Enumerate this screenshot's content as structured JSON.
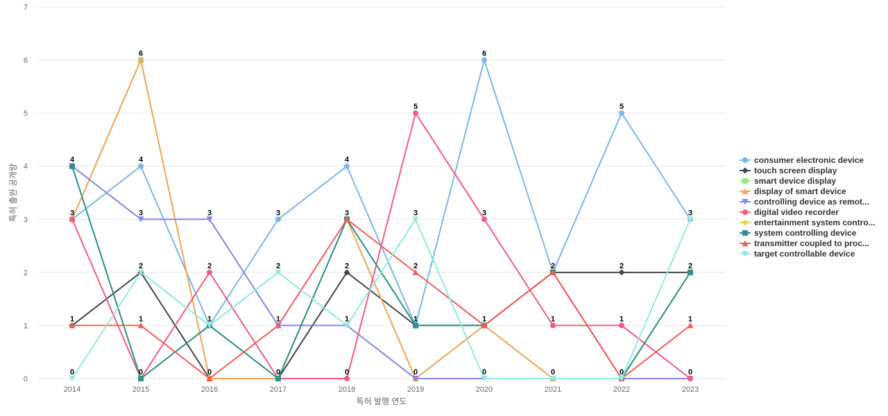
{
  "chart_data": {
    "type": "line",
    "title": "",
    "xlabel": "특허 발행 연도",
    "ylabel": "특허 출원 공개량",
    "x": [
      "2014",
      "2015",
      "2016",
      "2017",
      "2018",
      "2019",
      "2020",
      "2021",
      "2022",
      "2023"
    ],
    "ylim": [
      0,
      7
    ],
    "yticks": [
      0,
      1,
      2,
      3,
      4,
      5,
      6,
      7
    ],
    "grid": true,
    "legend_position": "right",
    "data_labels": true,
    "series": [
      {
        "name": "consumer electronic device",
        "color": "#7cb5ec",
        "marker": "circle",
        "values": [
          3,
          4,
          1,
          3,
          4,
          1,
          6,
          2,
          5,
          3
        ]
      },
      {
        "name": "touch screen display",
        "color": "#434348",
        "marker": "diamond",
        "values": [
          1,
          2,
          0,
          0,
          2,
          1,
          1,
          2,
          2,
          2
        ]
      },
      {
        "name": "smart device display",
        "color": "#90ed7d",
        "marker": "square",
        "values": [
          3,
          6,
          0,
          0,
          3,
          0,
          1,
          0,
          0,
          2
        ]
      },
      {
        "name": "display of smart device",
        "color": "#f7a35c",
        "marker": "triangle",
        "values": [
          3,
          6,
          0,
          0,
          3,
          0,
          1,
          0,
          0,
          2
        ]
      },
      {
        "name": "controlling device as remot...",
        "color": "#8085e9",
        "marker": "triangle-down",
        "values": [
          4,
          3,
          3,
          1,
          1,
          0,
          0,
          0,
          0,
          0
        ]
      },
      {
        "name": "digital video recorder",
        "color": "#f15c80",
        "marker": "circle",
        "values": [
          3,
          0,
          2,
          0,
          0,
          5,
          3,
          1,
          1,
          0
        ]
      },
      {
        "name": "entertainment system contro...",
        "color": "#e4d354",
        "marker": "diamond",
        "values": [
          4,
          0,
          1,
          0,
          3,
          1,
          1,
          2,
          0,
          2
        ]
      },
      {
        "name": "system controlling device",
        "color": "#2b908f",
        "marker": "square",
        "values": [
          4,
          0,
          1,
          0,
          3,
          1,
          1,
          2,
          0,
          2
        ]
      },
      {
        "name": "transmitter coupled to proc...",
        "color": "#f45b5b",
        "marker": "triangle",
        "values": [
          1,
          1,
          0,
          1,
          3,
          2,
          1,
          2,
          0,
          1
        ]
      },
      {
        "name": "target controllable device",
        "color": "#91e8e1",
        "marker": "triangle-down",
        "values": [
          0,
          2,
          1,
          2,
          1,
          3,
          0,
          0,
          0,
          3
        ]
      }
    ]
  }
}
